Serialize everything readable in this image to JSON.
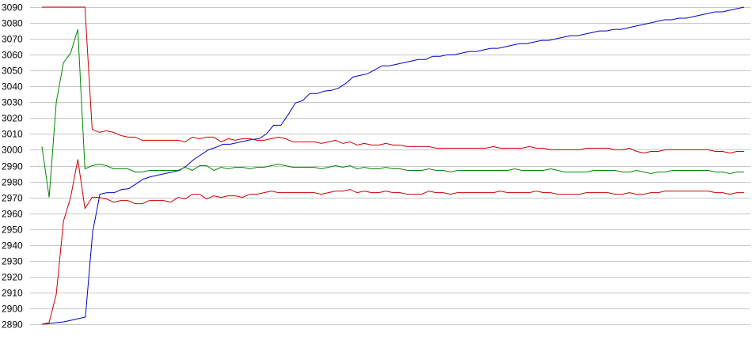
{
  "chart_data": {
    "type": "line",
    "title": "",
    "xlabel": "",
    "ylabel": "",
    "ylim": [
      2890,
      3090
    ],
    "yticks": [
      2890,
      2900,
      2910,
      2920,
      2930,
      2940,
      2950,
      2960,
      2970,
      2980,
      2990,
      3000,
      3010,
      3020,
      3030,
      3040,
      3050,
      3060,
      3070,
      3080,
      3090
    ],
    "grid": "horizontal",
    "legend": "none",
    "x_points": 120,
    "series": [
      {
        "color": "#0000cc",
        "values": [
          2890,
          2890.5,
          2891,
          2891.5,
          2892.5,
          2893.5,
          2894.5,
          2948,
          2972,
          2973,
          2973,
          2975,
          2975.5,
          2978.5,
          2981.5,
          2983,
          2984,
          2985,
          2986,
          2987,
          2990,
          2994,
          2997,
          3000,
          3001.5,
          3003.5,
          3003.5,
          3004.5,
          3005.5,
          3006.5,
          3007,
          3010,
          3015.5,
          3015.5,
          3022,
          3029.5,
          3031,
          3035.5,
          3035.5,
          3037,
          3037.5,
          3039,
          3042,
          3046,
          3047,
          3048,
          3050.5,
          3053,
          3053,
          3054,
          3055,
          3056,
          3057,
          3057,
          3059,
          3059,
          3060,
          3060,
          3061,
          3062,
          3062,
          3063,
          3064,
          3064,
          3065,
          3066,
          3067,
          3067,
          3068,
          3069,
          3069,
          3070,
          3071,
          3072,
          3072,
          3073,
          3074,
          3075,
          3075,
          3076,
          3076,
          3077,
          3078,
          3079,
          3080,
          3081,
          3082,
          3082,
          3083,
          3083,
          3084,
          3085,
          3086,
          3087,
          3087,
          3088,
          3089,
          3090
        ]
      },
      {
        "color": "#008800",
        "values": [
          3002,
          2970,
          3030,
          3055,
          3061,
          3076,
          2988,
          2990,
          2991,
          2990,
          2988,
          2988,
          2988,
          2986,
          2986,
          2987,
          2987,
          2987,
          2987,
          2987,
          2989,
          2987,
          2990,
          2990,
          2987,
          2989,
          2988,
          2989,
          2989,
          2988,
          2989,
          2989,
          2990,
          2991,
          2990,
          2989,
          2989,
          2989,
          2989,
          2988,
          2989,
          2990,
          2989,
          2990,
          2988,
          2989,
          2988,
          2988,
          2989,
          2988,
          2988,
          2987,
          2987,
          2987,
          2988,
          2987,
          2987,
          2986,
          2987,
          2987,
          2987,
          2987,
          2987,
          2987,
          2987,
          2987,
          2988,
          2987,
          2987,
          2987,
          2987,
          2988,
          2987,
          2986,
          2986,
          2986,
          2986,
          2987,
          2987,
          2987,
          2987,
          2986,
          2986,
          2987,
          2986,
          2985,
          2986,
          2986,
          2987,
          2987,
          2987,
          2987,
          2987,
          2987,
          2986,
          2986,
          2985,
          2986,
          2986
        ]
      },
      {
        "color": "#cc0000",
        "values": [
          3090,
          3090,
          3090,
          3090,
          3090,
          3090,
          3090,
          3013,
          3011,
          3012,
          3011,
          3009,
          3008,
          3008,
          3006,
          3006,
          3006,
          3006,
          3006,
          3006,
          3005,
          3008,
          3007,
          3008,
          3008,
          3005,
          3007,
          3006,
          3007,
          3007,
          3006,
          3006,
          3007,
          3008,
          3007,
          3005,
          3005,
          3005,
          3005,
          3004,
          3005,
          3006,
          3004,
          3005,
          3003,
          3004,
          3003,
          3003,
          3004,
          3003,
          3003,
          3002,
          3002,
          3002,
          3002,
          3001,
          3001,
          3001,
          3001,
          3001,
          3001,
          3001,
          3001,
          3002,
          3001,
          3001,
          3001,
          3001,
          3002,
          3001,
          3001,
          3000,
          3000,
          3000,
          3000,
          3000,
          3001,
          3001,
          3001,
          3001,
          3000,
          3000,
          3001,
          2999,
          2998,
          2999,
          2999,
          3000,
          3000,
          3000,
          3000,
          3000,
          3000,
          3000,
          2999,
          2999,
          2998,
          2999,
          2999
        ]
      },
      {
        "color": "#cc0000",
        "values": [
          2890,
          2891,
          2909,
          2955,
          2970,
          2994,
          2963,
          2970,
          2970,
          2969,
          2967,
          2968,
          2968,
          2966,
          2966,
          2968,
          2968,
          2968,
          2967,
          2970,
          2969,
          2972,
          2972,
          2969,
          2971,
          2970,
          2971,
          2971,
          2970,
          2972,
          2972,
          2973,
          2974,
          2973,
          2973,
          2973,
          2973,
          2973,
          2973,
          2972,
          2973,
          2974,
          2974,
          2975,
          2973,
          2974,
          2973,
          2973,
          2974,
          2973,
          2973,
          2972,
          2972,
          2972,
          2974,
          2973,
          2973,
          2972,
          2973,
          2973,
          2973,
          2973,
          2973,
          2973,
          2974,
          2973,
          2973,
          2973,
          2973,
          2974,
          2973,
          2973,
          2972,
          2972,
          2972,
          2972,
          2973,
          2973,
          2973,
          2973,
          2972,
          2972,
          2973,
          2972,
          2972,
          2973,
          2973,
          2974,
          2974,
          2974,
          2974,
          2974,
          2974,
          2974,
          2973,
          2973,
          2972,
          2973,
          2973
        ]
      }
    ]
  }
}
